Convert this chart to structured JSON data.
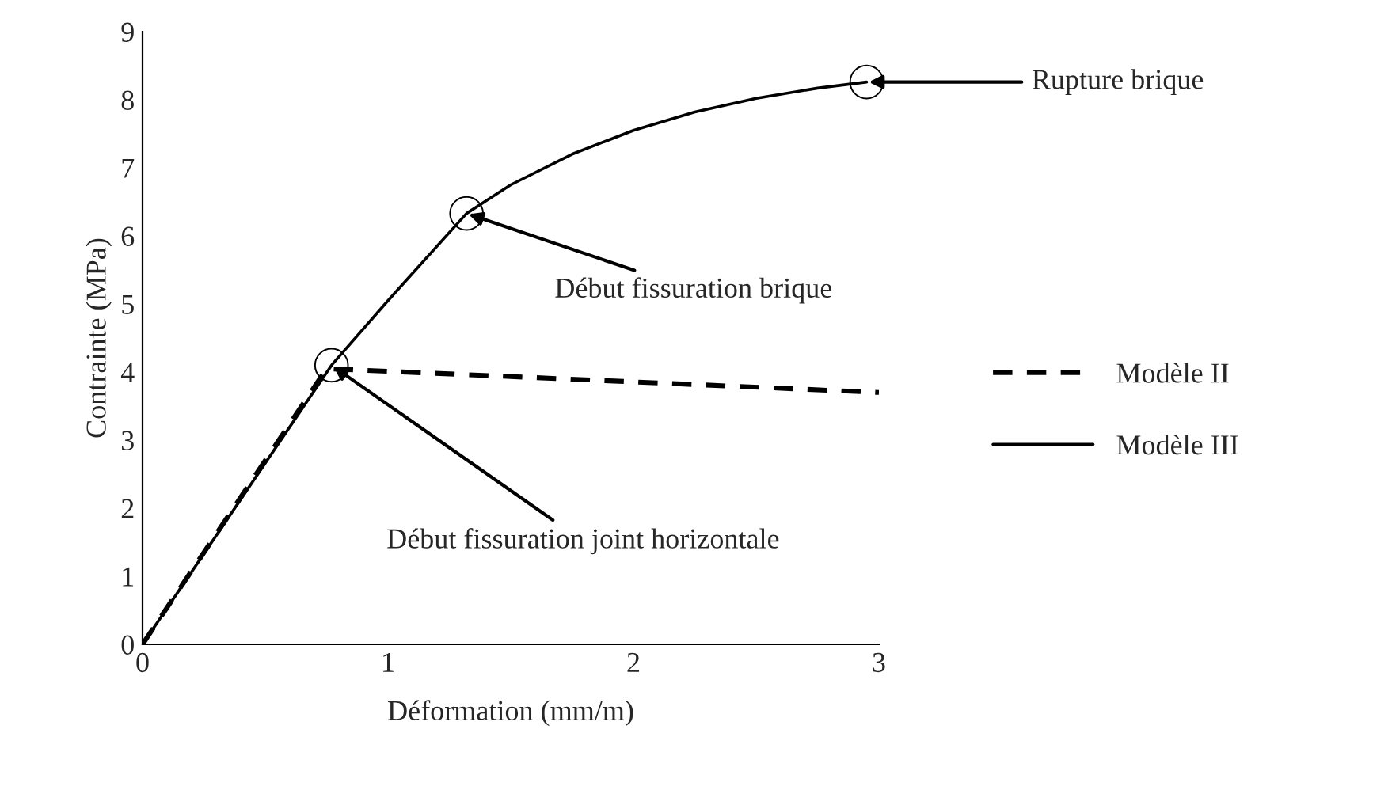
{
  "chart_data": {
    "type": "line",
    "xlabel": "Déformation (mm/m)",
    "ylabel": "Contrainte (MPa)",
    "xlim": [
      0,
      3
    ],
    "ylim": [
      0,
      9
    ],
    "xticks": [
      0,
      1,
      2,
      3
    ],
    "yticks": [
      0,
      1,
      2,
      3,
      4,
      5,
      6,
      7,
      8,
      9
    ],
    "grid": false,
    "legend": "right",
    "marker": "none",
    "series": [
      {
        "name": "Modèle II",
        "color": "#000000",
        "line_style": "dashed",
        "x": [
          0,
          0.75,
          3
        ],
        "values": [
          0,
          4.05,
          3.7
        ]
      },
      {
        "name": "Modèle III",
        "color": "#000000",
        "line_style": "solid",
        "x": [
          0,
          0.77,
          1.0,
          1.32,
          1.5,
          1.75,
          2.0,
          2.25,
          2.5,
          2.75,
          2.95
        ],
        "values": [
          0,
          4.1,
          5.05,
          6.33,
          6.75,
          7.2,
          7.55,
          7.82,
          8.02,
          8.17,
          8.26
        ]
      }
    ],
    "annotations": [
      {
        "text": "Début fissuration joint horizontale",
        "x": 0.77,
        "y": 4.1
      },
      {
        "text": "Début fissuration brique",
        "x": 1.32,
        "y": 6.33
      },
      {
        "text": "Rupture brique",
        "x": 2.95,
        "y": 8.26
      }
    ]
  }
}
